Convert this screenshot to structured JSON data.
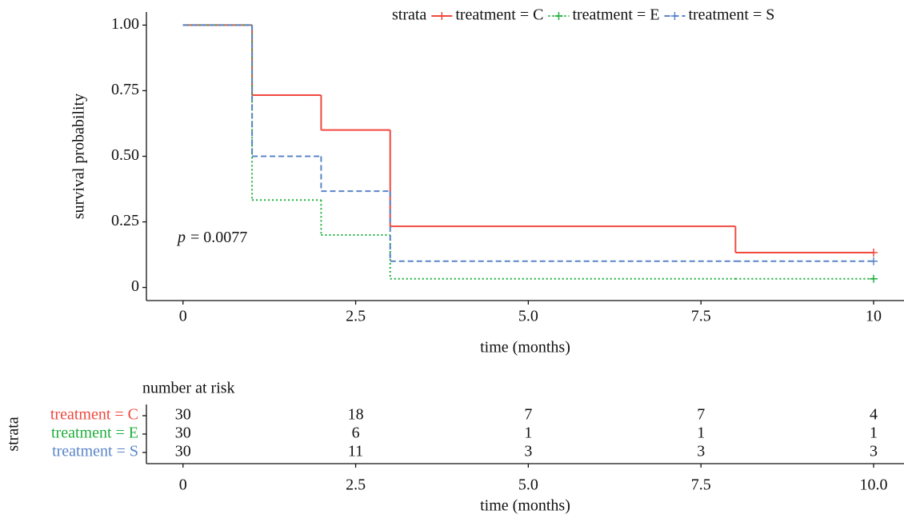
{
  "chart_data": [
    {
      "type": "step",
      "annotation": [
        "p",
        "= 0.0077"
      ],
      "xlabel": "time (months)",
      "ylabel": "survival probability",
      "legend_title": "strata",
      "legend": "top",
      "censor_marks": true,
      "x": [
        0,
        1,
        2,
        3,
        8,
        10
      ],
      "series": [
        {
          "name": "treatment = C",
          "color": "#f0483e",
          "linestyle": "solid",
          "values": [
            1,
            0.733,
            0.6,
            0.233,
            0.133,
            0.133
          ]
        },
        {
          "name": "treatment = E",
          "color": "#1fae3c",
          "linestyle": "dotted",
          "values": [
            1,
            0.333,
            0.2,
            0.033,
            0.033,
            0.033
          ]
        },
        {
          "name": "treatment = S",
          "color": "#5a85c8",
          "linestyle": "dashed",
          "values": [
            1,
            0.5,
            0.367,
            0.1,
            0.1,
            0.1
          ]
        }
      ],
      "xlim": [
        -0.53,
        10.44
      ],
      "ylim": [
        -0.05,
        1.05
      ],
      "xticks": [
        0,
        2.5,
        {
          "value": 5,
          "label": "5.0"
        },
        7.5,
        10
      ],
      "yticks": [
        0,
        0.25,
        {
          "value": 0.5,
          "label": "0.50"
        },
        0.75,
        {
          "value": 1,
          "label": "1.00"
        }
      ]
    },
    {
      "type": "table",
      "title": "number at risk",
      "xlabel": "time (months)",
      "ylabel": "strata",
      "x": [
        0,
        2.5,
        5,
        7.5,
        10
      ],
      "series": [
        {
          "name": "treatment = C",
          "color": "#f0483e",
          "values": [
            30,
            18,
            7,
            7,
            4
          ]
        },
        {
          "name": "treatment = E",
          "color": "#1fae3c",
          "values": [
            30,
            6,
            1,
            1,
            1
          ]
        },
        {
          "name": "treatment = S",
          "color": "#5a85c8",
          "values": [
            30,
            11,
            3,
            3,
            3
          ]
        }
      ],
      "xlim": [
        -0.53,
        10.44
      ],
      "xticks": [
        0,
        2.5,
        {
          "value": 5,
          "label": "5.0"
        },
        7.5,
        {
          "value": 10,
          "label": "10.0"
        }
      ]
    }
  ]
}
